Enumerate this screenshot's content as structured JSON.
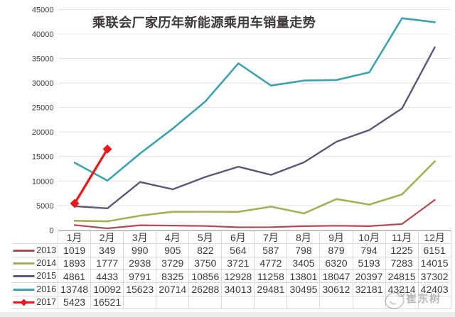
{
  "title": "乘联会厂家历年新能源乘用车销量走势",
  "watermark": {
    "text": "崔东树"
  },
  "chart_data": {
    "type": "line",
    "title": "乘联会厂家历年新能源乘用车销量走势",
    "categories": [
      "1月",
      "2月",
      "3月",
      "4月",
      "5月",
      "6月",
      "7月",
      "8月",
      "9月",
      "10月",
      "11月",
      "12月"
    ],
    "series": [
      {
        "name": "2013",
        "color": "#ad4b52",
        "marker": "none",
        "values": [
          1019,
          349,
          990,
          905,
          822,
          564,
          587,
          798,
          879,
          794,
          1225,
          6151
        ]
      },
      {
        "name": "2014",
        "color": "#9fb356",
        "marker": "none",
        "values": [
          1893,
          1777,
          2938,
          3729,
          3750,
          3721,
          4772,
          3405,
          6320,
          5193,
          7283,
          14015
        ]
      },
      {
        "name": "2015",
        "color": "#5a5878",
        "marker": "none",
        "values": [
          4861,
          4433,
          9791,
          8325,
          10856,
          12928,
          11258,
          13801,
          18047,
          20397,
          24815,
          37302
        ]
      },
      {
        "name": "2016",
        "color": "#3ba3af",
        "marker": "none",
        "values": [
          13748,
          10092,
          15623,
          20714,
          26288,
          34013,
          29481,
          30495,
          30612,
          32181,
          43214,
          42403
        ]
      },
      {
        "name": "2017",
        "color": "#e8191c",
        "marker": "diamond",
        "values": [
          5423,
          16521,
          null,
          null,
          null,
          null,
          null,
          null,
          null,
          null,
          null,
          null
        ]
      }
    ],
    "ylim": [
      0,
      45000
    ],
    "ytick_step": 5000,
    "grid": "horizontal",
    "legend_position": "data-table-left"
  }
}
